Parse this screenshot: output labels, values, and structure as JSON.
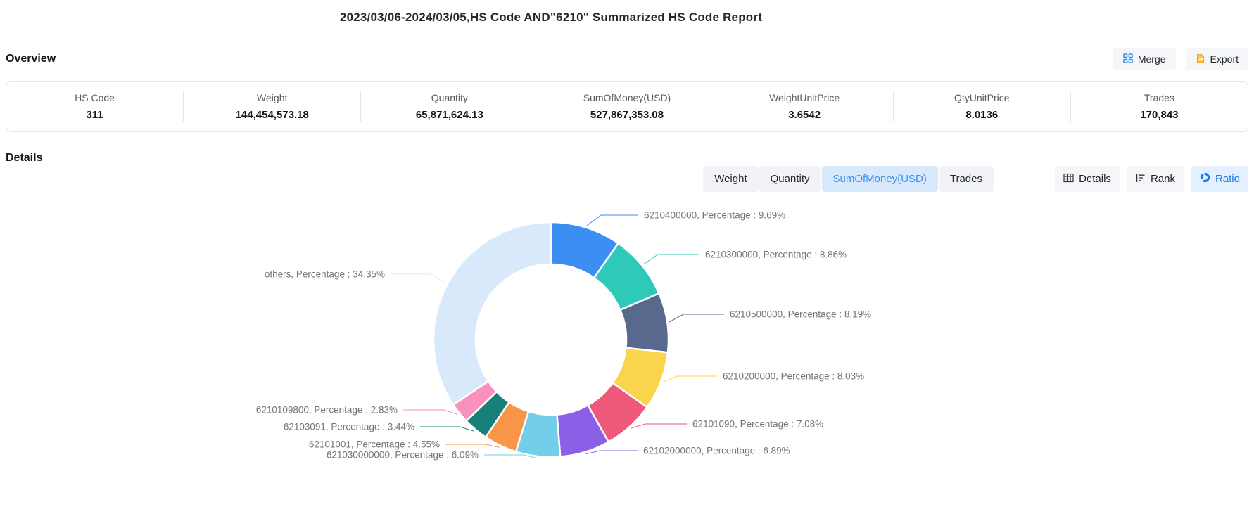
{
  "page_title": "2023/03/06-2024/03/05,HS Code AND\"6210\" Summarized HS Code Report",
  "overview": {
    "heading": "Overview",
    "buttons": {
      "merge": "Merge",
      "export": "Export"
    },
    "stats": [
      {
        "label": "HS Code",
        "value": "311"
      },
      {
        "label": "Weight",
        "value": "144,454,573.18"
      },
      {
        "label": "Quantity",
        "value": "65,871,624.13"
      },
      {
        "label": "SumOfMoney(USD)",
        "value": "527,867,353.08"
      },
      {
        "label": "WeightUnitPrice",
        "value": "3.6542"
      },
      {
        "label": "QtyUnitPrice",
        "value": "8.0136"
      },
      {
        "label": "Trades",
        "value": "170,843"
      }
    ]
  },
  "details": {
    "heading": "Details",
    "metric_tabs": [
      {
        "label": "Weight",
        "active": false
      },
      {
        "label": "Quantity",
        "active": false
      },
      {
        "label": "SumOfMoney(USD)",
        "active": true
      },
      {
        "label": "Trades",
        "active": false
      }
    ],
    "view_buttons": [
      {
        "label": "Details",
        "icon": "table-icon",
        "active": false
      },
      {
        "label": "Rank",
        "icon": "rank-icon",
        "active": false
      },
      {
        "label": "Ratio",
        "icon": "donut-icon",
        "active": true
      }
    ]
  },
  "chart_data": {
    "type": "pie",
    "donut": true,
    "legend_position": "none",
    "label_prefix": "Percentage",
    "label_separator": ",  ",
    "unit": "%",
    "items": [
      {
        "name": "6210400000",
        "value": 9.69,
        "color": "#3d8ef2"
      },
      {
        "name": "6210300000",
        "value": 8.86,
        "color": "#2fc9b9"
      },
      {
        "name": "6210500000",
        "value": 8.19,
        "color": "#59698d"
      },
      {
        "name": "6210200000",
        "value": 8.03,
        "color": "#f9d44c"
      },
      {
        "name": "62101090",
        "value": 7.08,
        "color": "#ee5879"
      },
      {
        "name": "62102000000",
        "value": 6.89,
        "color": "#8d5fe6"
      },
      {
        "name": "621030000000",
        "value": 6.09,
        "color": "#73cee9"
      },
      {
        "name": "62101001",
        "value": 4.55,
        "color": "#f89546"
      },
      {
        "name": "62103091",
        "value": 3.44,
        "color": "#178079"
      },
      {
        "name": "6210109800",
        "value": 2.83,
        "color": "#f891bb"
      },
      {
        "name": "others",
        "value": 34.35,
        "color": "#d8e9fc"
      }
    ]
  },
  "ui_colors": {
    "accent": "#3d8ef2",
    "active_tab_bg": "#d8e9fc",
    "active_view_bg": "#e3f0ff",
    "button_bg": "#f5f6f8",
    "export_orange": "#f5a623"
  }
}
